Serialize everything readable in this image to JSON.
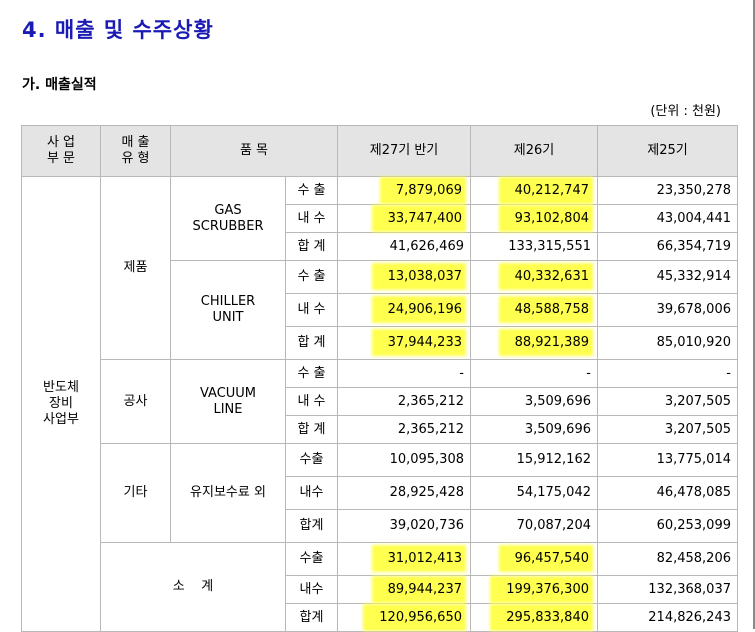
{
  "page": {
    "section_title": "4. 매출 및 수주상황",
    "sub_title": "가. 매출실적",
    "unit_note": "(단위 : 천원)"
  },
  "headers": {
    "division": "사 업\n부 문",
    "sales_type": "매 출\n유 형",
    "item": "품 목",
    "p27": "제27기 반기",
    "p26": "제26기",
    "p25": "제25기"
  },
  "labels": {
    "division_name": "반도체\n장비\n사업부",
    "type_product": "제품",
    "type_construction": "공사",
    "type_other": "기타",
    "subtotal": "소    계",
    "item_gas": "GAS\nSCRUBBER",
    "item_chiller": "CHILLER\nUNIT",
    "item_vacuum": "VACUUM\nLINE",
    "item_maint": "유지보수료 외"
  },
  "rows": [
    {
      "kind": "수 출",
      "v27": "7,879,069",
      "v26": "40,212,747",
      "v25": "23,350,278",
      "hl": [
        true,
        true
      ]
    },
    {
      "kind": "내 수",
      "v27": "33,747,400",
      "v26": "93,102,804",
      "v25": "43,004,441",
      "hl": [
        true,
        true
      ]
    },
    {
      "kind": "합 계",
      "v27": "41,626,469",
      "v26": "133,315,551",
      "v25": "66,354,719",
      "hl": [
        false,
        false
      ]
    },
    {
      "kind": "수 출",
      "v27": "13,038,037",
      "v26": "40,332,631",
      "v25": "45,332,914",
      "hl": [
        true,
        true
      ]
    },
    {
      "kind": "내 수",
      "v27": "24,906,196",
      "v26": "48,588,758",
      "v25": "39,678,006",
      "hl": [
        true,
        true
      ]
    },
    {
      "kind": "합 계",
      "v27": "37,944,233",
      "v26": "88,921,389",
      "v25": "85,010,920",
      "hl": [
        true,
        true
      ]
    },
    {
      "kind": "수 출",
      "v27": "-",
      "v26": "-",
      "v25": "-",
      "hl": [
        false,
        false
      ]
    },
    {
      "kind": "내 수",
      "v27": "2,365,212",
      "v26": "3,509,696",
      "v25": "3,207,505",
      "hl": [
        false,
        false
      ]
    },
    {
      "kind": "합 계",
      "v27": "2,365,212",
      "v26": "3,509,696",
      "v25": "3,207,505",
      "hl": [
        false,
        false
      ]
    },
    {
      "kind": "수출",
      "v27": "10,095,308",
      "v26": "15,912,162",
      "v25": "13,775,014",
      "hl": [
        false,
        false
      ]
    },
    {
      "kind": "내수",
      "v27": "28,925,428",
      "v26": "54,175,042",
      "v25": "46,478,085",
      "hl": [
        false,
        false
      ]
    },
    {
      "kind": "합계",
      "v27": "39,020,736",
      "v26": "70,087,204",
      "v25": "60,253,099",
      "hl": [
        false,
        false
      ]
    },
    {
      "kind": "수출",
      "v27": "31,012,413",
      "v26": "96,457,540",
      "v25": "82,458,206",
      "hl": [
        true,
        true
      ]
    },
    {
      "kind": "내수",
      "v27": "89,944,237",
      "v26": "199,376,300",
      "v25": "132,368,037",
      "hl": [
        true,
        true
      ]
    },
    {
      "kind": "합계",
      "v27": "120,956,650",
      "v26": "295,833,840",
      "v25": "214,826,243",
      "hl": [
        true,
        true
      ]
    }
  ],
  "colors": {
    "title": "#1a1ab4",
    "header_bg": "#e4e4e4",
    "highlight": "#ffff4f",
    "border": "#b8b8b8"
  }
}
